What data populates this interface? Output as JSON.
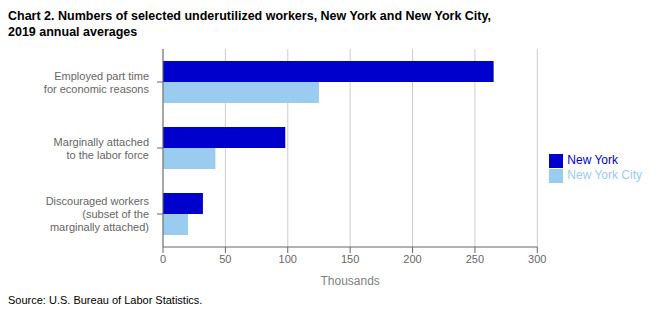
{
  "chart_data": {
    "type": "bar",
    "orientation": "horizontal",
    "title": "Chart 2. Numbers of selected underutilized workers, New York and New York City,\n2019 annual averages",
    "source": "Source: U.S. Bureau of Labor Statistics.",
    "x_label": "Thousands",
    "categories": [
      "Employed part time\nfor economic reasons",
      "Marginally attached\nto the labor force",
      "Discouraged workers\n(subset of the\nmarginally attached)"
    ],
    "series": [
      {
        "name": "New York",
        "color": "#0000CC",
        "values": [
          265,
          98,
          32
        ]
      },
      {
        "name": "New York City",
        "color": "#99CCEE",
        "values": [
          125,
          42,
          20
        ]
      }
    ],
    "xlim": [
      0,
      300
    ],
    "xticks": [
      0,
      50,
      100,
      150,
      200,
      250,
      300
    ],
    "grid": true,
    "legend": "right"
  }
}
